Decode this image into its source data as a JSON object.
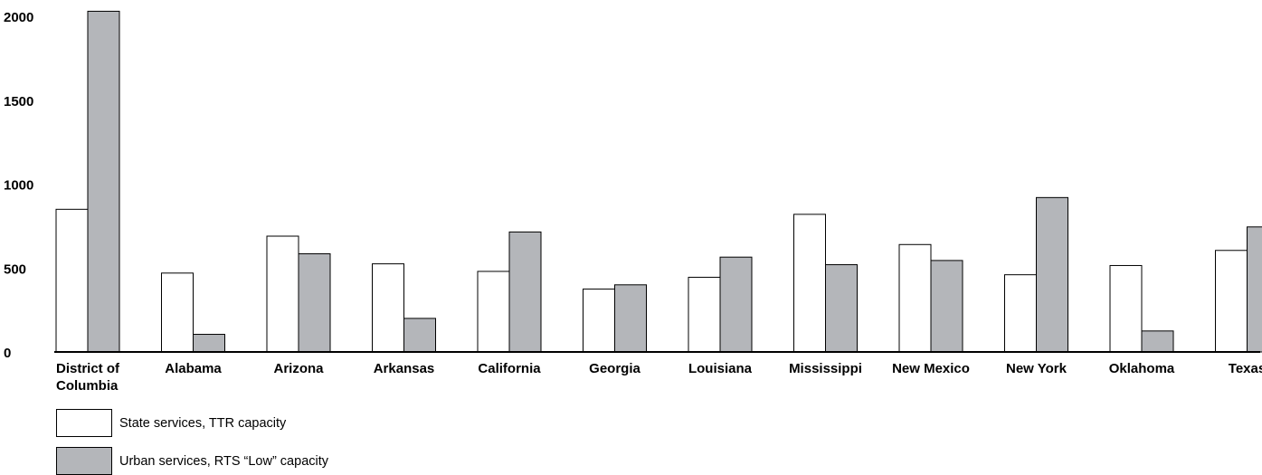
{
  "chart_data": {
    "type": "bar",
    "title": "",
    "xlabel": "",
    "ylabel": "",
    "ylim": [
      0,
      2050
    ],
    "yticks": [
      0,
      500,
      1000,
      1500,
      2000
    ],
    "ytick_labels": [
      "0",
      "500",
      "1000",
      "1500",
      "2000"
    ],
    "categories": [
      "District of Columbia",
      "Alabama",
      "Arizona",
      "Arkansas",
      "California",
      "Georgia",
      "Louisiana",
      "Mississippi",
      "New Mexico",
      "New York",
      "Oklahoma",
      "Texas"
    ],
    "category_label_lines": [
      [
        "District of",
        "Columbia"
      ],
      [
        "Alabama"
      ],
      [
        "Arizona"
      ],
      [
        "Arkansas"
      ],
      [
        "California"
      ],
      [
        "Georgia"
      ],
      [
        "Louisiana"
      ],
      [
        "Mississippi"
      ],
      [
        "New Mexico"
      ],
      [
        "New York"
      ],
      [
        "Oklahoma"
      ],
      [
        "Texas"
      ]
    ],
    "series": [
      {
        "name": "State services, TTR capacity",
        "color": "#ffffff",
        "values": [
          850,
          470,
          690,
          525,
          480,
          375,
          445,
          820,
          640,
          460,
          515,
          605
        ]
      },
      {
        "name": "Urban services, RTS “Low” capacity",
        "color": "#b4b6ba",
        "values": [
          2030,
          105,
          585,
          200,
          715,
          400,
          565,
          520,
          545,
          920,
          125,
          745
        ]
      }
    ],
    "grid": false,
    "legend_position": "bottom-left"
  },
  "legend": {
    "items": [
      {
        "label": "State services, TTR capacity",
        "color": "#ffffff"
      },
      {
        "label": "Urban services, RTS “Low” capacity",
        "color": "#b4b6ba"
      }
    ]
  }
}
